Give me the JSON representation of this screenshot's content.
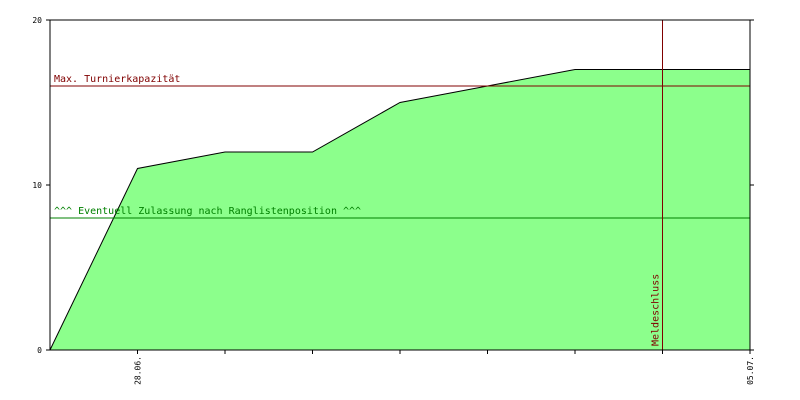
{
  "chart_data": {
    "type": "area",
    "categories": [
      null,
      "28.06.",
      null,
      null,
      null,
      null,
      null,
      null,
      "05.07."
    ],
    "values": [
      0,
      11,
      12,
      12,
      15,
      16,
      17,
      17,
      17
    ],
    "color": "#8cff8c",
    "line_color": "#000000",
    "ylim": [
      0,
      20
    ],
    "yticks": [
      0,
      10,
      20
    ],
    "hlines": [
      {
        "value": 16,
        "label": "Max. Turnierkapazität",
        "color": "#800000"
      },
      {
        "value": 8,
        "label": "^^^ Eventuell Zulassung nach Ranglistenposition ^^^",
        "color": "#008000"
      }
    ],
    "vlines": [
      {
        "category_index": 7,
        "label": "Meldeschluss",
        "color": "#800000"
      }
    ]
  }
}
